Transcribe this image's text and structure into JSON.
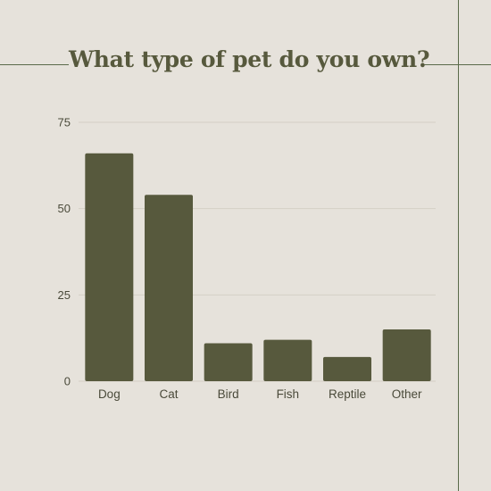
{
  "colors": {
    "background": "#e6e2db",
    "bar": "#57593d",
    "gridline": "#d4cfc6",
    "accent_line": "#5a6b4a",
    "title": "#57593d"
  },
  "chart_data": {
    "type": "bar",
    "title": "What type of pet do you own?",
    "categories": [
      "Dog",
      "Cat",
      "Bird",
      "Fish",
      "Reptile",
      "Other"
    ],
    "values": [
      66,
      54,
      11,
      12,
      7,
      15
    ],
    "ylim": [
      0,
      75
    ],
    "yticks": [
      0,
      25,
      50,
      75
    ],
    "grid": true,
    "xlabel": "",
    "ylabel": ""
  }
}
